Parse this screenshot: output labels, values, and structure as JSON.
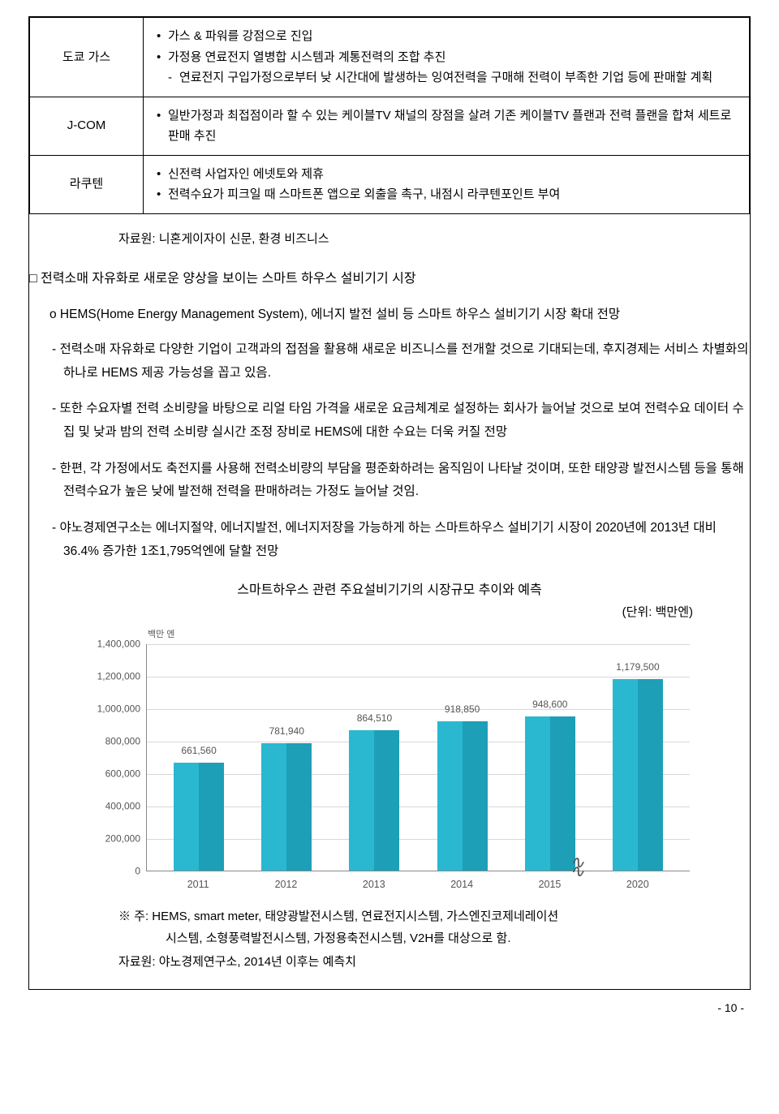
{
  "table": {
    "rows": [
      {
        "label": "도쿄 가스",
        "items": [
          {
            "type": "bullet",
            "text": "가스 & 파워를 강점으로 진입"
          },
          {
            "type": "bullet",
            "text": "가정용 연료전지 열병합 시스템과 계통전력의 조합 추진"
          },
          {
            "type": "sub",
            "text": "연료전지 구입가정으로부터 낮 시간대에 발생하는 잉여전력을 구매해 전력이 부족한 기업 등에 판매할 계획"
          }
        ]
      },
      {
        "label": "J-COM",
        "items": [
          {
            "type": "bullet",
            "text": "일반가정과 최접점이라 할 수 있는 케이블TV 채널의 장점을 살려 기존 케이블TV 플랜과 전력 플랜을 합쳐 세트로 판매 추진"
          }
        ]
      },
      {
        "label": "라쿠텐",
        "items": [
          {
            "type": "bullet",
            "text": "신전력 사업자인 에넷토와 제휴"
          },
          {
            "type": "bullet",
            "text": "전력수요가 피크일 때 스마트폰 앱으로 외출을 촉구, 내점시 라쿠텐포인트 부여"
          }
        ]
      }
    ],
    "source": "자료원: 니혼게이자이 신문, 환경 비즈니스"
  },
  "section": {
    "heading": "□ 전력소매 자유화로 새로운 양상을 보이는 스마트 하우스 설비기기 시장",
    "o_item": "o HEMS(Home Energy Management System), 에너지 발전 설비 등 스마트 하우스 설비기기 시장 확대 전망",
    "dashes": [
      "- 전력소매 자유화로 다양한 기업이 고객과의 접점을 활용해 새로운 비즈니스를 전개할 것으로 기대되는데, 후지경제는 서비스 차별화의 하나로 HEMS 제공 가능성을 꼽고 있음.",
      "- 또한 수요자별 전력 소비량을 바탕으로 리얼 타임 가격을 새로운 요금체계로 설정하는 회사가 늘어날 것으로 보여 전력수요 데이터 수집 및 낮과 밤의 전력 소비량 실시간 조정 장비로 HEMS에 대한 수요는 더욱 커질 전망",
      "- 한편, 각 가정에서도 축전지를 사용해 전력소비량의 부담을 평준화하려는 움직임이 나타날 것이며, 또한 태양광 발전시스템 등을 통해 전력수요가 높은 낮에 발전해 전력을 판매하려는 가정도 늘어날 것임.",
      "- 야노경제연구소는 에너지절약, 에너지발전, 에너지저장을 가능하게 하는 스마트하우스 설비기기 시장이 2020년에 2013년 대비 36.4% 증가한 1조1,795억엔에 달할 전망"
    ]
  },
  "chart": {
    "title": "스마트하우스 관련 주요설비기기의 시장규모 추이와 예측",
    "unit": "(단위: 백만엔)",
    "y_unit_label": "백만 엔",
    "type": "bar",
    "y_max": 1400000,
    "y_ticks": [
      0,
      200000,
      400000,
      600000,
      800000,
      1000000,
      1200000,
      1400000
    ],
    "y_tick_labels": [
      "0",
      "200,000",
      "400,000",
      "600,000",
      "800,000",
      "1,000,000",
      "1,200,000",
      "1,400,000"
    ],
    "categories": [
      "2011",
      "2012",
      "2013",
      "2014",
      "2015",
      "2020"
    ],
    "values": [
      661560,
      781940,
      864510,
      918850,
      948600,
      1179500
    ],
    "value_labels": [
      "661,560",
      "781,940",
      "864,510",
      "918,850",
      "948,600",
      "1,179,500"
    ],
    "bar_color_left": "#2ab8d1",
    "bar_color_right": "#1d9fb7",
    "grid_color": "#d8d8d8",
    "axis_color": "#888888",
    "bg": "#ffffff",
    "break_before_index": 5,
    "note_line1": "※ 주: HEMS, smart meter, 태양광발전시스템, 연료전지시스템, 가스엔진코제네레이션",
    "note_line2": "시스템, 소형풍력발전시스템, 가정용축전시스템, V2H를 대상으로 함.",
    "note_source": "자료원: 야노경제연구소, 2014년 이후는 예측치"
  },
  "page_number": "- 10 -"
}
